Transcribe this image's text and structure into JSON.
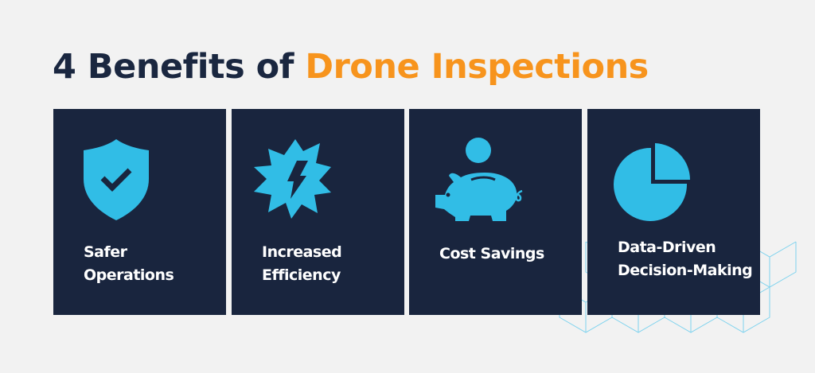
{
  "title": {
    "prefix": "4 Benefits of",
    "highlight": "Drone Inspections"
  },
  "colors": {
    "navy": "#19253e",
    "orange": "#f7941d",
    "icon_blue": "#31bde6",
    "background": "#f2f2f2"
  },
  "cards": [
    {
      "icon": "shield-check-icon",
      "line1": "Safer",
      "line2": "Operations"
    },
    {
      "icon": "lightning-burst-icon",
      "line1": "Increased",
      "line2": "Efficiency"
    },
    {
      "icon": "piggy-bank-icon",
      "line1": "Cost Savings",
      "line2": ""
    },
    {
      "icon": "pie-chart-icon",
      "line1": "Data-Driven",
      "line2": "Decision-Making"
    }
  ]
}
